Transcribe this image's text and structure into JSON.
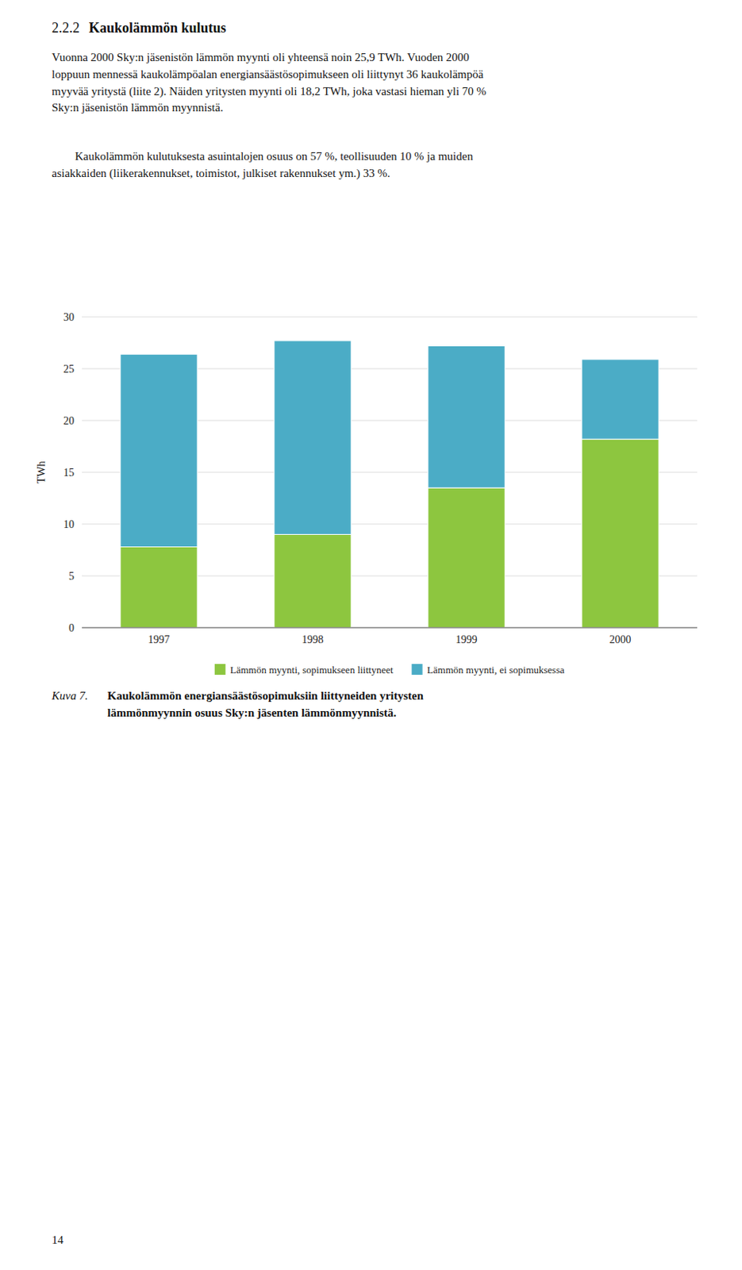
{
  "heading": {
    "number": "2.2.2",
    "text": "Kaukolämmön kulutus"
  },
  "paragraphs": [
    "Vuonna 2000 Sky:n jäsenistön lämmön myynti oli yhteensä noin 25,9 TWh. Vuoden 2000\nloppuun mennessä kaukolämpöalan energiansäästösopimukseen oli liittynyt 36 kaukolämpöä\nmyyvää yritystä (liite 2). Näiden yritysten myynti oli 18,2 TWh, joka vastasi hieman yli 70 %\nSky:n jäsenistön lämmön myynnistä.",
    "Kaukolämmön kulutuksesta asuintalojen osuus on 57 %, teollisuuden 10 % ja muiden\nasiakkaiden (liikerakennukset, toimistot, julkiset rakennukset ym.) 33 %."
  ],
  "caption": {
    "label": "Kuva 7.",
    "text": "Kaukolämmön energiansäästösopimuksiin liittyneiden yritysten\nlämmönmyynnin osuus Sky:n jäsenten lämmönmyynnistä."
  },
  "page_number": "14",
  "chart_data": {
    "type": "bar",
    "stacked": true,
    "categories": [
      "1997",
      "1998",
      "1999",
      "2000"
    ],
    "series": [
      {
        "name": "Lämmön myynti, sopimukseen liittyneet",
        "color": "#8DC63F",
        "values": [
          7.8,
          9.0,
          13.5,
          18.2
        ]
      },
      {
        "name": "Lämmön myynti, ei sopimuksessa",
        "color": "#4BACC6",
        "values": [
          18.6,
          18.7,
          13.7,
          7.7
        ]
      }
    ],
    "y_label": "TWh",
    "ylim": [
      0,
      30
    ],
    "yticks": [
      0,
      5,
      10,
      15,
      20,
      25,
      30
    ],
    "grid": true,
    "legend": "bottom"
  }
}
